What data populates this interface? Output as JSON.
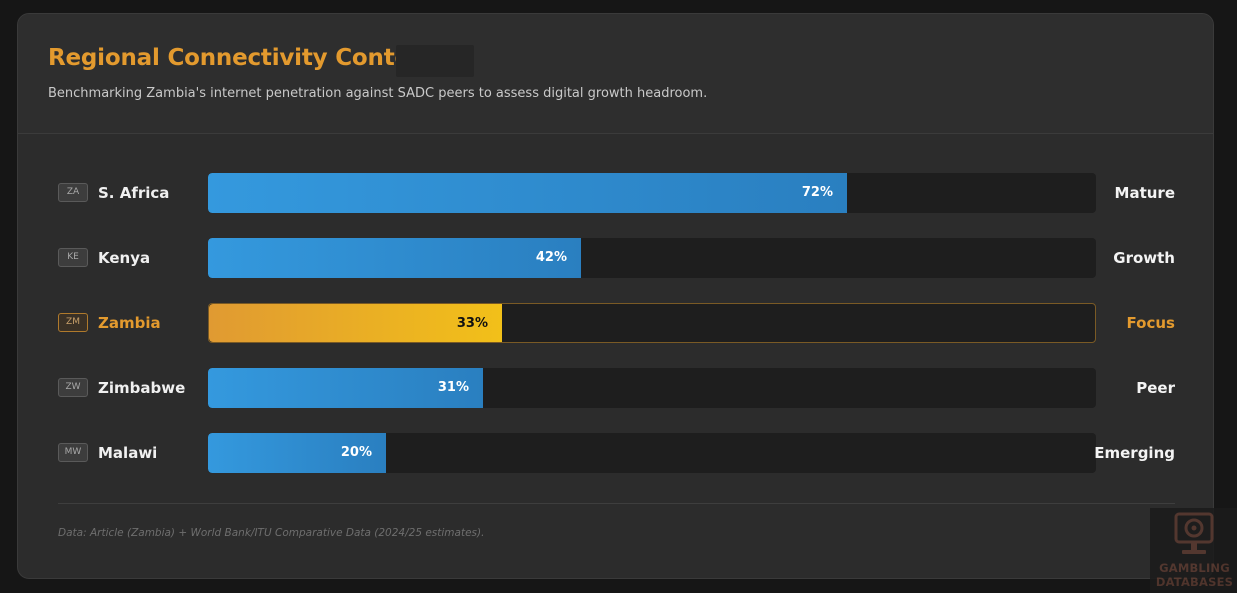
{
  "header": {
    "title": "Regional Connectivity Context",
    "subtitle": "Benchmarking Zambia's internet penetration against SADC peers to assess digital growth headroom."
  },
  "chart_data": {
    "type": "bar",
    "orientation": "horizontal",
    "xlim": [
      0,
      100
    ],
    "categories": [
      "S. Africa",
      "Kenya",
      "Zambia",
      "Zimbabwe",
      "Malawi"
    ],
    "codes": [
      "ZA",
      "KE",
      "ZM",
      "ZW",
      "MW"
    ],
    "values": [
      72,
      42,
      33,
      31,
      20
    ],
    "value_labels": [
      "72%",
      "42%",
      "33%",
      "31%",
      "20%"
    ],
    "statuses": [
      "Mature",
      "Growth",
      "Focus",
      "Peer",
      "Emerging"
    ],
    "highlight": "Zambia",
    "colors": {
      "bar": "#2f8fd4",
      "highlight": "#f2c019",
      "accent": "#e39a2e",
      "track": "#1e1e1e"
    }
  },
  "footer": {
    "source": "Data: Article (Zambia) + World Bank/ITU Comparative Data (2024/25 estimates)."
  },
  "watermark": {
    "line1": "GAMBLING",
    "line2": "DATABASES"
  }
}
